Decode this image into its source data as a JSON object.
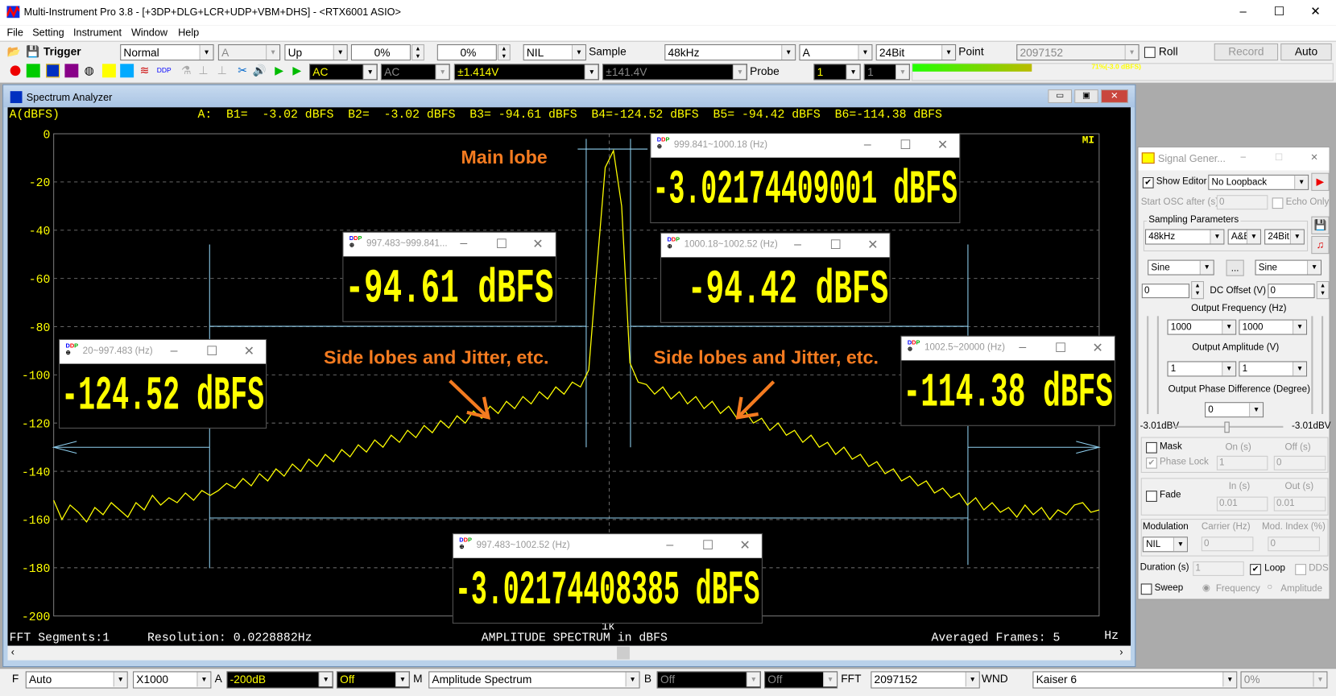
{
  "window": {
    "title": "Multi-Instrument Pro 3.8  -  [+3DP+DLG+LCR+UDP+VBM+DHS]  -  <RTX6001 ASIO>",
    "minimize": "–",
    "maximize": "☐",
    "close": "✕"
  },
  "menu": [
    "File",
    "Setting",
    "Instrument",
    "Window",
    "Help"
  ],
  "toolbar1": {
    "trigger_label": "Trigger",
    "trigger_mode": "Normal",
    "trigger_channel": "A",
    "trigger_edge": "Up",
    "level1": "0%",
    "level2": "0%",
    "nil": "NIL",
    "sample_label": "Sample",
    "sample_rate": "48kHz",
    "channel": "A",
    "bits": "24Bit",
    "point_label": "Point",
    "points": "2097152",
    "roll_label": "Roll",
    "roll_checked": false,
    "record": "Record",
    "auto": "Auto"
  },
  "toolbar2": {
    "coupling_a": "AC",
    "coupling_b": "AC",
    "range_a": "±1.414V",
    "range_b": "±141.4V",
    "probe_label": "Probe",
    "probe_a": "1",
    "probe_b": "1",
    "level_meter": {
      "text": "71%(-3.0 dBFS)",
      "percent": 71
    }
  },
  "spectrum": {
    "title": "Spectrum Analyzer",
    "y_unit": "A(dBFS)",
    "readouts": "A:  B1=  -3.02 dBFS  B2=  -3.02 dBFS  B3= -94.61 dBFS  B4=-124.52 dBFS  B5= -94.42 dBFS  B6=-114.38 dBFS",
    "logo": "MI",
    "fft_segments": "FFT Segments:1",
    "resolution": "Resolution: 0.0228882Hz",
    "plot_title": "AMPLITUDE SPECTRUM in dBFS",
    "averaged": "Averaged Frames: 5",
    "x_unit": "Hz",
    "x_tick": "1k",
    "popups": [
      {
        "range": "999.841~1000.18 (Hz)",
        "value": "-3.02174409001 dBFS"
      },
      {
        "range": "997.483~999.841...",
        "value": "-94.61 dBFS"
      },
      {
        "range": "1000.18~1002.52 (Hz)",
        "value": "-94.42 dBFS"
      },
      {
        "range": "20~997.483 (Hz)",
        "value": "-124.52 dBFS"
      },
      {
        "range": "1002.5~20000 (Hz)",
        "value": "-114.38 dBFS"
      },
      {
        "range": "997.483~1002.52 (Hz)",
        "value": "-3.02174408385 dBFS"
      }
    ],
    "annotations": {
      "main": "Main lobe",
      "side_left": "Side lobes and Jitter, etc.",
      "side_right": "Side lobes and Jitter, etc."
    },
    "annotation_color": "#f47b20"
  },
  "chart_data": {
    "type": "line",
    "ylabel": "A(dBFS)",
    "ylim": [
      -200,
      0
    ],
    "y_ticks": [
      "0",
      "-20",
      "-40",
      "-60",
      "-80",
      "-100",
      "-120",
      "-140",
      "-160",
      "-180",
      "-200"
    ],
    "x_tick_labels": [
      "1k"
    ],
    "grid": true,
    "trace_color": "#ffff00",
    "series": [
      {
        "values_dbfs": [
          -152,
          -160,
          -154,
          -157,
          -161,
          -155,
          -158,
          -153,
          -156,
          -159,
          -153,
          -156,
          -150,
          -154,
          -151,
          -153,
          -149,
          -152,
          -148,
          -150,
          -148,
          -145,
          -147,
          -143,
          -146,
          -141,
          -144,
          -139,
          -142,
          -137,
          -140,
          -135,
          -138,
          -133,
          -136,
          -131,
          -134,
          -129,
          -132,
          -127,
          -130,
          -125,
          -128,
          -123,
          -126,
          -121,
          -124,
          -119,
          -122,
          -117,
          -120,
          -115,
          -118,
          -113,
          -116,
          -111,
          -114,
          -109,
          -112,
          -107,
          -110,
          -105,
          -108,
          -103,
          -105,
          -98,
          -55,
          -14,
          -7,
          -30,
          -95,
          -103,
          -104,
          -108,
          -105,
          -110,
          -107,
          -112,
          -109,
          -114,
          -111,
          -116,
          -113,
          -118,
          -115,
          -120,
          -118,
          -123,
          -120,
          -125,
          -123,
          -128,
          -125,
          -130,
          -128,
          -133,
          -130,
          -135,
          -133,
          -138,
          -136,
          -141,
          -139,
          -144,
          -142,
          -146,
          -144,
          -149,
          -147,
          -151,
          -149,
          -154,
          -151,
          -156,
          -153,
          -157,
          -155,
          -159,
          -154,
          -158,
          -155,
          -160,
          -156,
          -158,
          -154,
          -153,
          -157,
          -156
        ]
      }
    ]
  },
  "bottombar": {
    "f_label": "F",
    "f_value": "Auto",
    "x_value": "X1000",
    "a_label": "A",
    "a_value": "-200dB",
    "a_off": "Off",
    "m_label": "M",
    "m_value": "Amplitude Spectrum",
    "b_label": "B",
    "b_value": "Off",
    "b_off": "Off",
    "fft_label": "FFT",
    "fft_value": "2097152",
    "wnd_label": "WND",
    "wnd_value": "Kaiser 6",
    "overlap": "0%"
  },
  "siggen": {
    "title": "Signal Gener...",
    "show_editor": "Show Editor",
    "loopback": "No Loopback",
    "start_osc": "Start OSC after (s)",
    "start_osc_value": "0",
    "echo_only": "Echo Only",
    "sampling_params": "Sampling Parameters",
    "sample_rate": "48kHz",
    "channels": "A&B",
    "bits": "24Bit",
    "wave_a": "Sine",
    "wave_more": "...",
    "wave_b": "Sine",
    "dc_a": "0",
    "dc_label": "DC Offset (V)",
    "dc_b": "0",
    "freq_label": "Output Frequency (Hz)",
    "freq_a": "1000",
    "freq_b": "1000",
    "amp_label": "Output Amplitude (V)",
    "amp_a": "1",
    "amp_b": "1",
    "phase_label": "Output Phase Difference (Degree)",
    "phase": "0",
    "level_a": "-3.01dBV",
    "level_b": "-3.01dBV",
    "mask": "Mask",
    "on": "On (s)",
    "off": "Off (s)",
    "phase_lock": "Phase Lock",
    "on_value": "1",
    "off_value": "0",
    "fade": "Fade",
    "in": "In (s)",
    "out": "Out (s)",
    "in_value": "0.01",
    "out_value": "0.01",
    "modulation": "Modulation",
    "carrier": "Carrier (Hz)",
    "mod_index": "Mod. Index (%)",
    "mod_type": "NIL",
    "carrier_value": "0",
    "mod_index_value": "0",
    "duration": "Duration (s)",
    "duration_value": "1",
    "loop": "Loop",
    "dds": "DDS",
    "sweep": "Sweep",
    "frequency": "Frequency",
    "amplitude": "Amplitude",
    "check": "✔",
    "min": "–",
    "max": "☐",
    "close": "✕"
  }
}
